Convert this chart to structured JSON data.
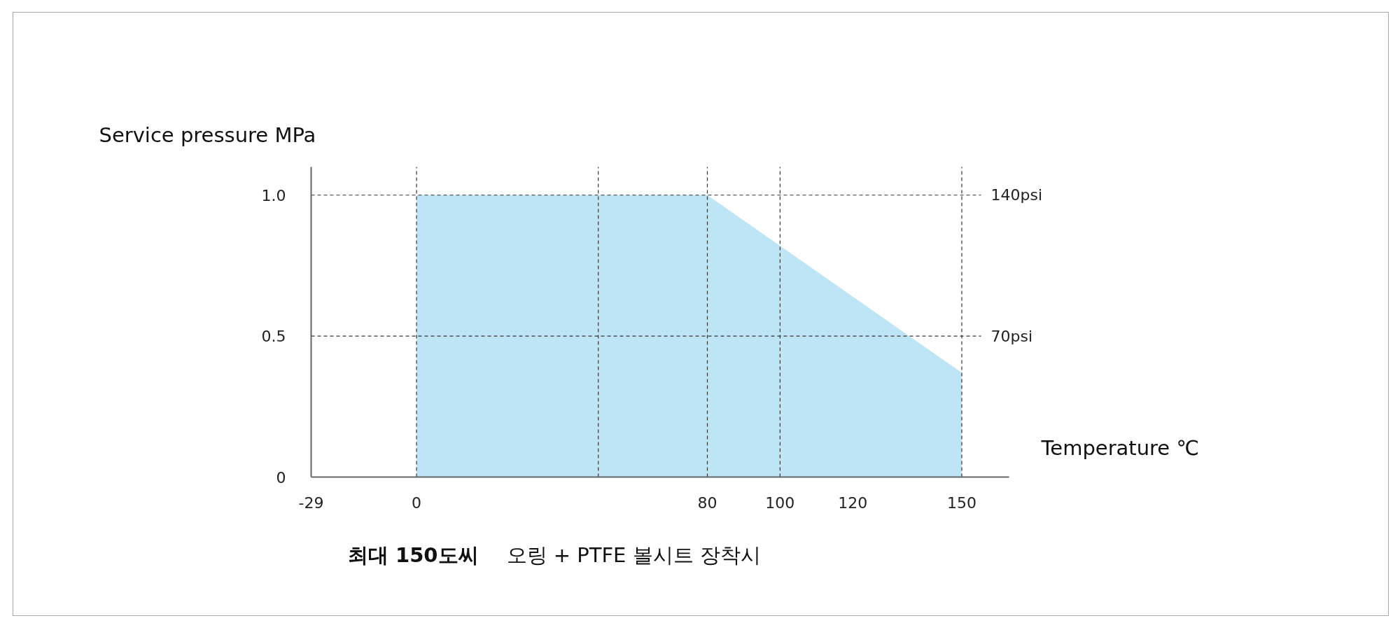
{
  "chart_data": {
    "type": "area",
    "xlabel": "Temperature ℃",
    "ylabel": "Service pressure MPa",
    "x": [
      0,
      80,
      150
    ],
    "series": [
      {
        "color": "#bee5f6",
        "values": [
          1.0,
          1.0,
          0.37
        ]
      }
    ],
    "xlim": [
      -29,
      163
    ],
    "xticks": [
      -29,
      0,
      80,
      100,
      120,
      150
    ],
    "ylim": [
      0,
      1.1
    ],
    "yticks": [
      0,
      0.5,
      {
        "value": 1,
        "label": "1.0"
      }
    ],
    "grid": false,
    "ref_lines": [
      {
        "axis": "y",
        "value": 1,
        "label": "140psi",
        "color": "#333333",
        "line_style": "dashed"
      },
      {
        "axis": "y",
        "value": 0.5,
        "label": "70psi",
        "color": "#333333",
        "line_style": "dashed"
      },
      {
        "axis": "x",
        "value": 0,
        "color": "#333333",
        "line_style": "dashed"
      },
      {
        "axis": "x",
        "value": 50,
        "color": "#333333",
        "line_style": "dashed"
      },
      {
        "axis": "x",
        "value": 80,
        "color": "#333333",
        "line_style": "dashed"
      },
      {
        "axis": "x",
        "value": 100,
        "color": "#333333",
        "line_style": "dashed"
      },
      {
        "axis": "x",
        "value": 150,
        "color": "#333333",
        "line_style": "dashed"
      }
    ],
    "annotations": [
      "최대 150도씨",
      "오링 + PTFE 볼시트 장착시"
    ]
  }
}
